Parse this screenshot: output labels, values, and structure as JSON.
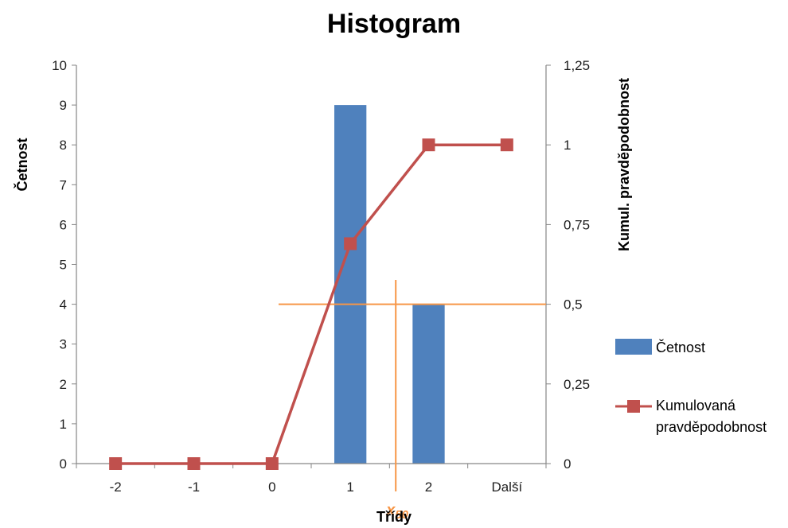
{
  "chart_data": {
    "type": "bar",
    "title": "Histogram",
    "xlabel": "Třídy",
    "ylabel": "Četnost",
    "y2label": "Kumul. pravděpodobnost",
    "categories": [
      "-2",
      "-1",
      "0",
      "1",
      "2",
      "Další"
    ],
    "ylim": [
      0,
      10
    ],
    "y2lim": [
      0,
      1.25
    ],
    "y_ticks": [
      "0",
      "1",
      "2",
      "3",
      "4",
      "5",
      "6",
      "7",
      "8",
      "9",
      "10"
    ],
    "y2_ticks": [
      "0",
      "0,25",
      "0,5",
      "0,75",
      "1",
      "1,25"
    ],
    "grid": false,
    "legend_position": "right",
    "series": [
      {
        "name": "Četnost",
        "type": "bar",
        "axis": "left",
        "color": "#4f81bd",
        "values": [
          0,
          0,
          0,
          9,
          4,
          0
        ]
      },
      {
        "name": "Kumulovaná pravděpodobnost",
        "legend_lines": [
          "Kumulovaná",
          "pravděpodobnost"
        ],
        "type": "line",
        "axis": "right",
        "marker": "square",
        "color": "#c0504d",
        "values": [
          0,
          0,
          0,
          0.69,
          1,
          1
        ]
      }
    ],
    "annotations": {
      "median_label": "x",
      "median_subscript": "50",
      "median_y": 0.5,
      "median_x_position": 0.68,
      "color": "#f79646"
    }
  }
}
